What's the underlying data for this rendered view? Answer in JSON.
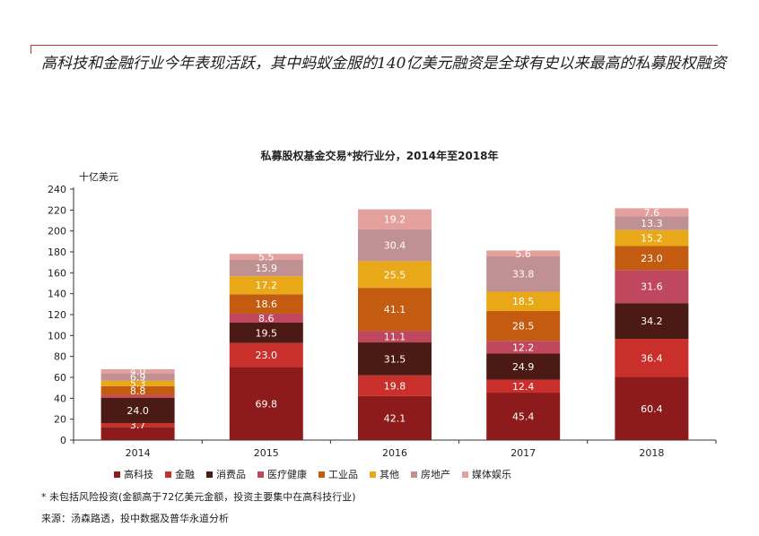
{
  "headline": "高科技和金融行业今年表现活跃，其中蚂蚁金服的140亿美元融资是全球有史以来最高的私募股权融资",
  "footnote": "* 未包括风险投资(金额高于72亿美元金额，投资主要集中在高科技行业)",
  "source": "来源：汤森路透，投中数据及普华永道分析",
  "chart_data": {
    "type": "bar",
    "stacked": true,
    "title": "私募股权基金交易*按行业分，2014年至2018年",
    "unit_label": "十亿美元",
    "xlabel": "",
    "ylabel": "",
    "ylim": [
      0,
      240
    ],
    "yticks": [
      0,
      20,
      40,
      60,
      80,
      100,
      120,
      140,
      160,
      180,
      200,
      220,
      240
    ],
    "grid": false,
    "legend_position": "bottom",
    "categories": [
      "2014",
      "2015",
      "2016",
      "2017",
      "2018"
    ],
    "series": [
      {
        "name": "高科技",
        "color": "#8e1b1b",
        "values": [
          12.6,
          69.8,
          42.1,
          45.4,
          60.4
        ]
      },
      {
        "name": "金融",
        "color": "#c9302c",
        "values": [
          3.7,
          23.0,
          19.8,
          12.4,
          36.4
        ]
      },
      {
        "name": "消费品",
        "color": "#4b1a14",
        "values": [
          24.0,
          19.5,
          31.5,
          24.9,
          34.2
        ]
      },
      {
        "name": "医疗健康",
        "color": "#c0485e",
        "values": [
          2.5,
          8.6,
          11.1,
          12.2,
          31.6
        ]
      },
      {
        "name": "工业品",
        "color": "#c35b10",
        "values": [
          8.8,
          18.6,
          41.1,
          28.5,
          23.0
        ]
      },
      {
        "name": "其他",
        "color": "#e8a817",
        "values": [
          5.3,
          17.2,
          25.5,
          18.5,
          15.2
        ]
      },
      {
        "name": "房地产",
        "color": "#c09193",
        "values": [
          6.9,
          15.9,
          30.4,
          33.8,
          13.3
        ]
      },
      {
        "name": "媒体娱乐",
        "color": "#e3a09d",
        "values": [
          4.0,
          5.5,
          19.2,
          5.6,
          7.6
        ]
      }
    ],
    "data_labels": [
      [
        "",
        "3.7",
        "24.0",
        "",
        "8.8",
        "5.3",
        "6.9",
        "4.0"
      ],
      [
        "69.8",
        "23.0",
        "19.5",
        "8.6",
        "18.6",
        "17.2",
        "15.9",
        "5.5"
      ],
      [
        "42.1",
        "19.8",
        "31.5",
        "11.1",
        "41.1",
        "25.5",
        "30.4",
        "19.2"
      ],
      [
        "45.4",
        "12.4",
        "24.9",
        "12.2",
        "28.5",
        "18.5",
        "33.8",
        "5.6"
      ],
      [
        "60.4",
        "36.4",
        "34.2",
        "31.6",
        "23.0",
        "15.2",
        "13.3",
        "7.6"
      ]
    ]
  }
}
